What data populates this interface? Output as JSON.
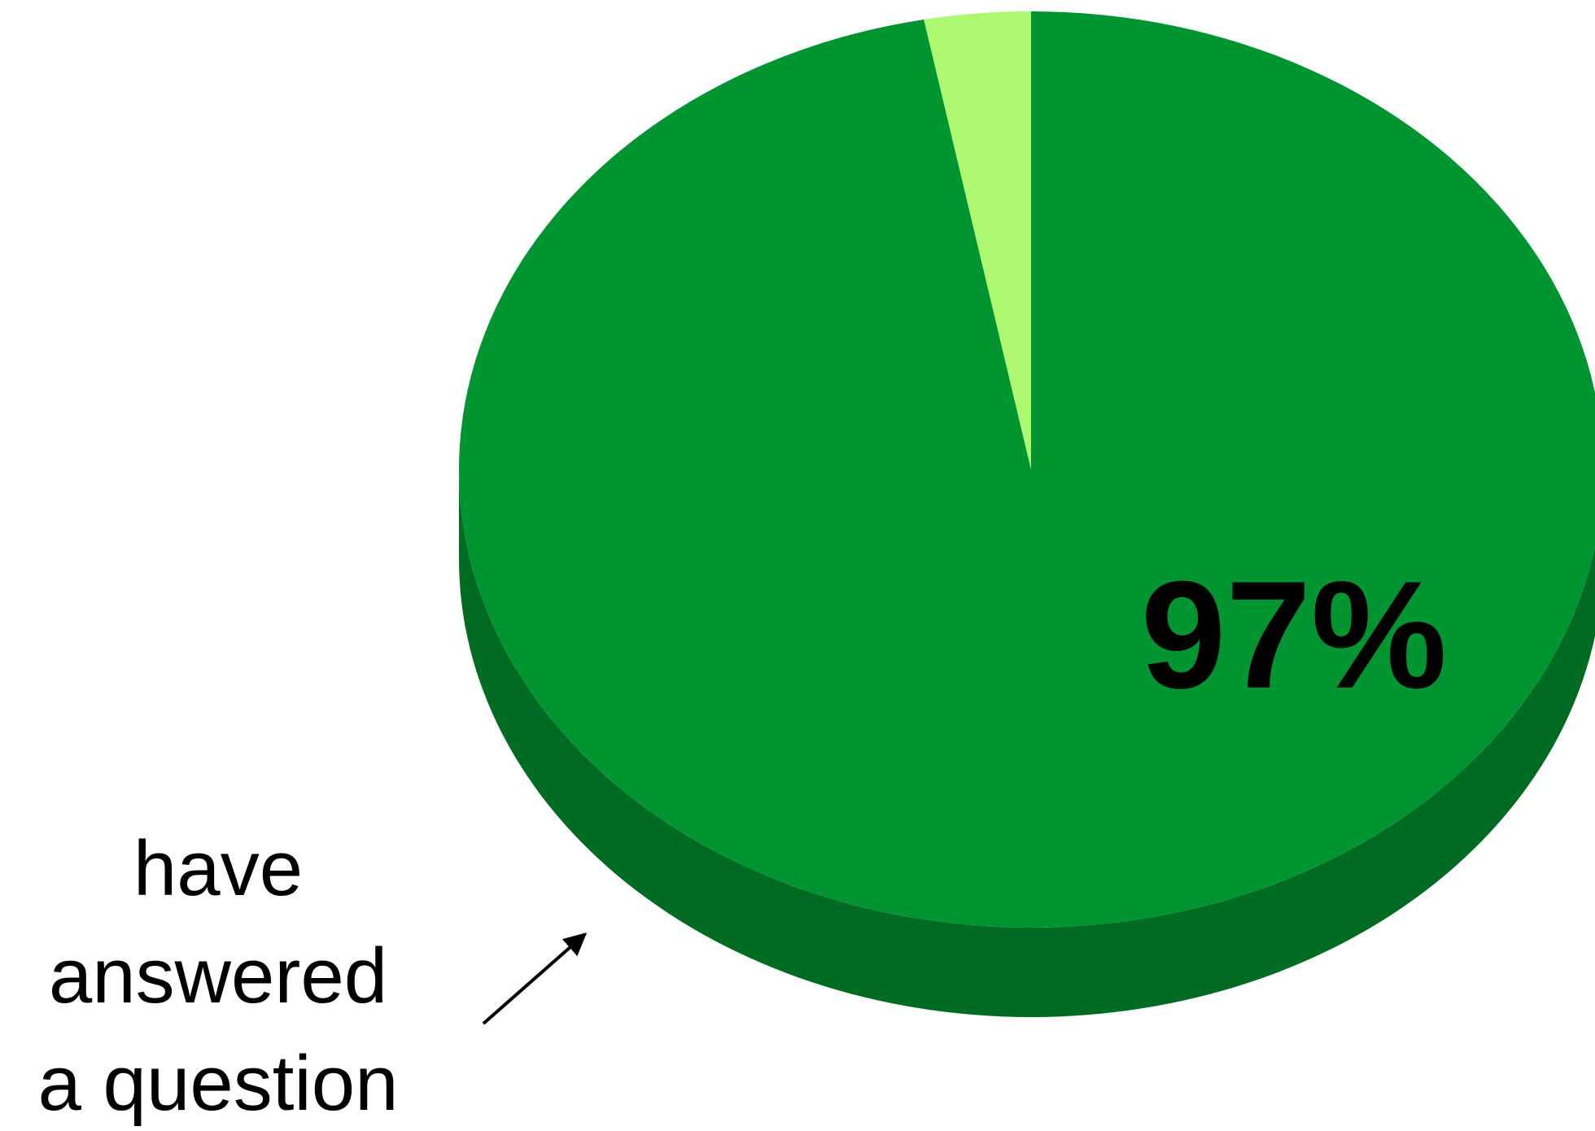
{
  "chart_data": {
    "type": "pie",
    "slices": [
      {
        "label": "have answered a question",
        "value": 97,
        "value_label": "97%",
        "color": "#009530",
        "side_color": "#006b22"
      },
      {
        "label": "",
        "value": 3,
        "value_label": "",
        "color": "#acf870"
      }
    ],
    "annotation": {
      "lines": [
        "have",
        "answered",
        "a question"
      ],
      "points_to": "have answered a question"
    },
    "style": "3d-tilted",
    "title": "",
    "legend": "none"
  }
}
